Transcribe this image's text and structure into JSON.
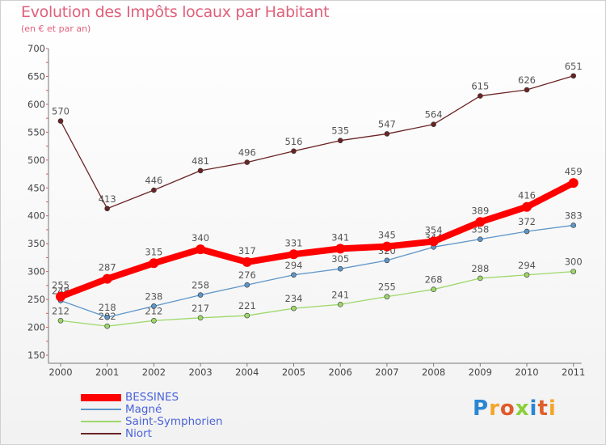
{
  "title": "Evolution des Impôts locaux par Habitant",
  "subtitle": "(en € et par an)",
  "logo": "Proxiti",
  "chart_data": {
    "type": "line",
    "x": [
      "2000",
      "2001",
      "2002",
      "2003",
      "2004",
      "2005",
      "2006",
      "2007",
      "2008",
      "2009",
      "2010",
      "2011"
    ],
    "ylim": [
      150,
      700
    ],
    "yticks": [
      150,
      200,
      250,
      300,
      350,
      400,
      450,
      500,
      550,
      600,
      650,
      700
    ],
    "series": [
      {
        "name": "Niort",
        "color": "#6b2424",
        "values": [
          570,
          413,
          446,
          481,
          496,
          516,
          535,
          547,
          564,
          615,
          626,
          651
        ]
      },
      {
        "name": "Saint-Symphorien",
        "color": "#9ed86a",
        "values": [
          212,
          202,
          212,
          217,
          221,
          234,
          241,
          255,
          268,
          288,
          294,
          300
        ]
      },
      {
        "name": "Magné",
        "color": "#5e96c9",
        "values": [
          248,
          218,
          238,
          258,
          276,
          294,
          305,
          320,
          344,
          358,
          372,
          383
        ]
      },
      {
        "name": "BESSINES",
        "color": "#ff0000",
        "values": [
          255,
          287,
          315,
          340,
          317,
          331,
          341,
          345,
          354,
          389,
          416,
          459
        ]
      }
    ],
    "legend": [
      "BESSINES",
      "Magné",
      "Saint-Symphorien",
      "Niort"
    ],
    "legend_position": "bottom-left",
    "grid": false
  }
}
